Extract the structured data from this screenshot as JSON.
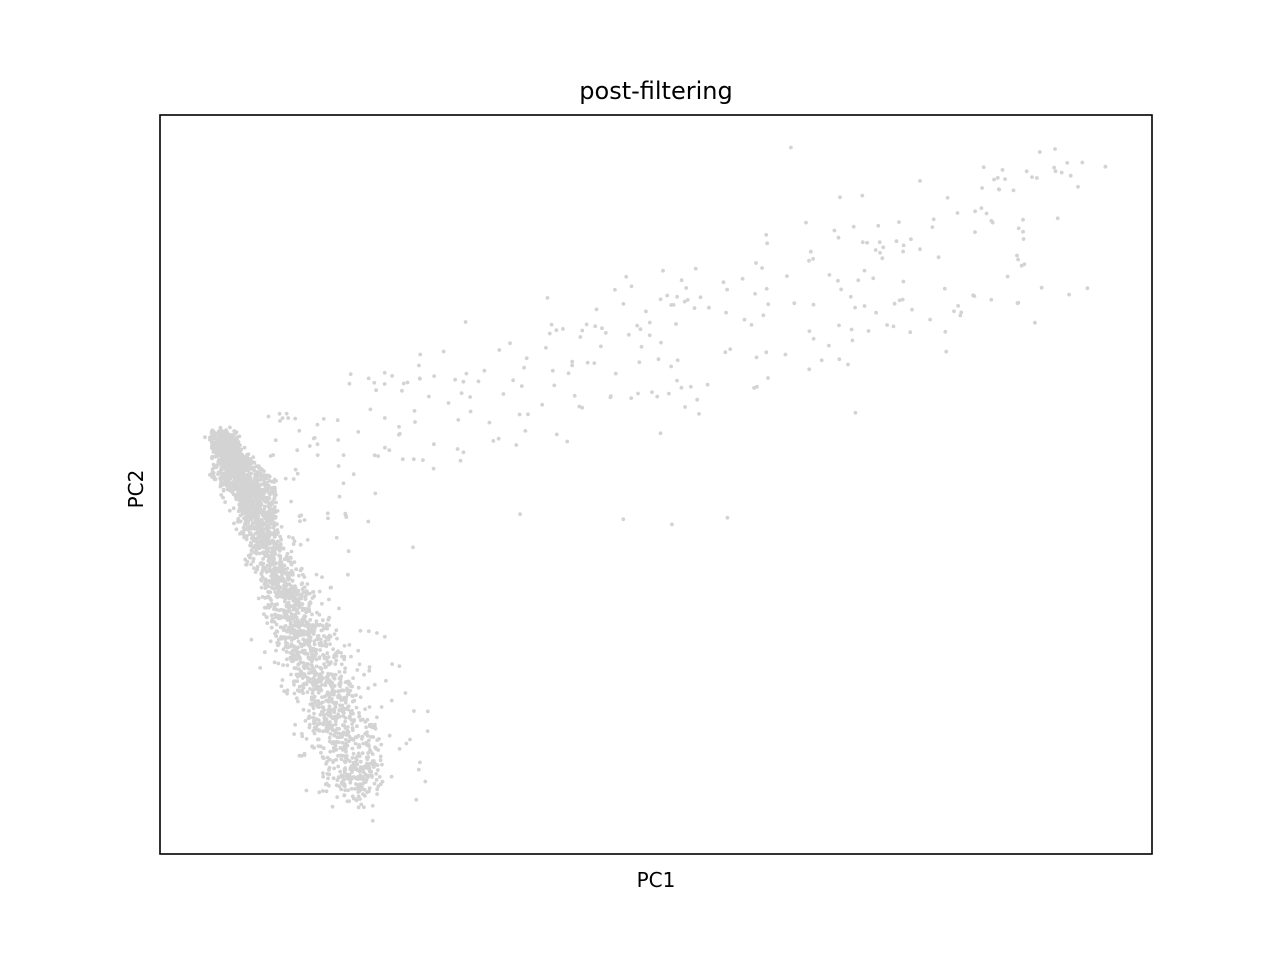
{
  "chart_data": {
    "type": "scatter",
    "title": "post-filtering",
    "xlabel": "PC1",
    "ylabel": "PC2",
    "xlim": [
      0,
      100
    ],
    "ylim": [
      0,
      100
    ],
    "grid": false,
    "ticks": "none",
    "colors": {
      "point": "#d3d3d3",
      "frame": "#000000",
      "background": "#ffffff"
    },
    "approx_point_count": 3000,
    "regions": [
      {
        "name": "dense-left-band",
        "x_range": [
          4.5,
          21
        ],
        "y_range": [
          4.5,
          58
        ],
        "density": "high"
      },
      {
        "name": "upper-right-branch",
        "x_range": [
          12,
          96
        ],
        "y_range": [
          48,
          93
        ],
        "density": "low"
      }
    ],
    "points": [
      [
        63.6,
        95.6
      ],
      [
        95.3,
        93.0
      ],
      [
        90.9,
        92.2
      ],
      [
        87.9,
        91.6
      ],
      [
        84.6,
        89.9
      ],
      [
        70.8,
        89.1
      ],
      [
        79.4,
        88.8
      ],
      [
        82.8,
        87.4
      ],
      [
        75.7,
        83.2
      ],
      [
        68.4,
        83.4
      ],
      [
        72.9,
        82.1
      ],
      [
        65.6,
        81.5
      ],
      [
        60.7,
        79.3
      ],
      [
        63.2,
        78.2
      ],
      [
        54.0,
        79.2
      ],
      [
        50.5,
        69.2
      ],
      [
        48.1,
        71.5
      ],
      [
        44.0,
        73.7
      ],
      [
        38.9,
        68.5
      ],
      [
        34.2,
        68.2
      ],
      [
        32.7,
        65.4
      ],
      [
        28.6,
        68.0
      ],
      [
        26.2,
        64.3
      ],
      [
        23.4,
        64.7
      ],
      [
        55.2,
        63.5
      ],
      [
        51.3,
        62.3
      ],
      [
        49.6,
        62.5
      ],
      [
        45.4,
        61.8
      ],
      [
        41.8,
        62.0
      ],
      [
        37.1,
        59.5
      ],
      [
        33.6,
        55.9
      ],
      [
        30.0,
        54.8
      ],
      [
        26.5,
        53.3
      ],
      [
        21.7,
        48.8
      ],
      [
        36.3,
        46.0
      ],
      [
        46.7,
        45.3
      ],
      [
        51.6,
        44.6
      ],
      [
        57.2,
        45.5
      ],
      [
        70.1,
        59.7
      ],
      [
        69.8,
        69.5
      ],
      [
        82.1,
        75.5
      ],
      [
        83.8,
        75.0
      ],
      [
        88.2,
        71.9
      ],
      [
        66.7,
        66.8
      ],
      [
        12.1,
        58.6
      ],
      [
        15.6,
        56.3
      ],
      [
        18.0,
        52.5
      ],
      [
        21.0,
        45.0
      ],
      [
        25.5,
        41.5
      ],
      [
        23.4,
        25.7
      ],
      [
        27.0,
        19.3
      ],
      [
        21.1,
        24.8
      ],
      [
        25.2,
        15.5
      ],
      [
        20.2,
        30.2
      ]
    ]
  }
}
